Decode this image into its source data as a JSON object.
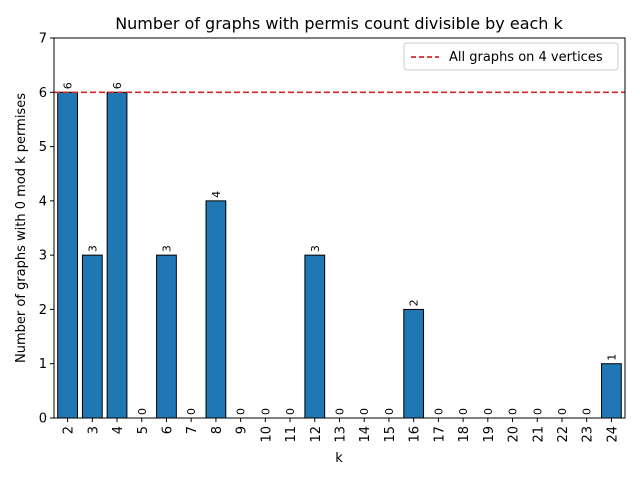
{
  "chart_data": {
    "type": "bar",
    "title": "Number of graphs with permis count divisible by each k",
    "xlabel": "k",
    "ylabel": "Number of graphs with 0 mod k permises",
    "categories": [
      "2",
      "3",
      "4",
      "5",
      "6",
      "7",
      "8",
      "9",
      "10",
      "11",
      "12",
      "13",
      "14",
      "15",
      "16",
      "17",
      "18",
      "19",
      "20",
      "21",
      "22",
      "23",
      "24"
    ],
    "values": [
      6,
      3,
      6,
      0,
      3,
      0,
      4,
      0,
      0,
      0,
      3,
      0,
      0,
      0,
      2,
      0,
      0,
      0,
      0,
      0,
      0,
      0,
      1
    ],
    "ylim": [
      0,
      7
    ],
    "yticks": [
      0,
      1,
      2,
      3,
      4,
      5,
      6,
      7
    ],
    "bar_color": "#1f77b4",
    "bar_edge_color": "#000000",
    "reference_line": {
      "value": 6,
      "label": "All graphs on 4 vertices",
      "color": "#d62728",
      "style": "dashed"
    },
    "legend": {
      "entries": [
        "All graphs on 4 vertices"
      ],
      "placement": "top-right"
    },
    "grid": false
  }
}
